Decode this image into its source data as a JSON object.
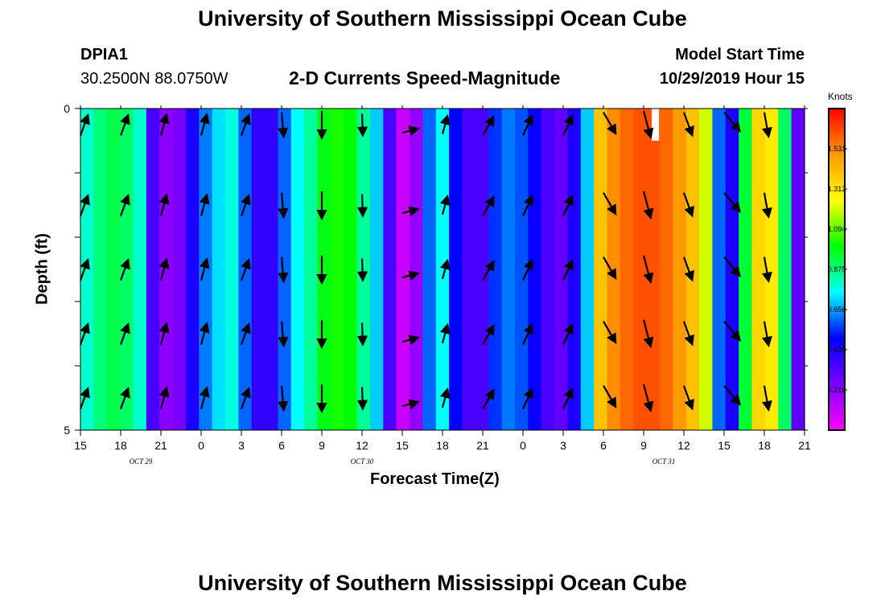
{
  "header": {
    "title": "University of Southern Mississippi Ocean Cube",
    "station_id": "DPIA1",
    "station_coords": "30.2500N 88.0750W",
    "subtitle": "2-D Currents Speed-Magnitude",
    "model_start_label": "Model Start Time",
    "model_start_value": "10/29/2019 Hour 15"
  },
  "footer": {
    "title": "University of Southern Mississippi Ocean Cube"
  },
  "colors": {
    "arrow": "#000000",
    "missing": "#ffffff",
    "palette": [
      "#ff00ff",
      "#7b00ff",
      "#0000ff",
      "#00ffff",
      "#00ff00",
      "#ffff00",
      "#ff9900",
      "#ff0000"
    ]
  },
  "chart_data": {
    "type": "heatmap",
    "title": "2-D Currents Speed-Magnitude",
    "xlabel": "Forecast Time(Z)",
    "ylabel": "Depth (ft)",
    "x_range_hours": [
      0,
      54
    ],
    "y_range": [
      0,
      5
    ],
    "x_ticks": [
      {
        "hour": 0,
        "label": "15"
      },
      {
        "hour": 3,
        "label": "18"
      },
      {
        "hour": 6,
        "label": "21"
      },
      {
        "hour": 9,
        "label": "0"
      },
      {
        "hour": 12,
        "label": "3"
      },
      {
        "hour": 15,
        "label": "6"
      },
      {
        "hour": 18,
        "label": "9"
      },
      {
        "hour": 21,
        "label": "12"
      },
      {
        "hour": 24,
        "label": "15"
      },
      {
        "hour": 27,
        "label": "18"
      },
      {
        "hour": 30,
        "label": "21"
      },
      {
        "hour": 33,
        "label": "0"
      },
      {
        "hour": 36,
        "label": "3"
      },
      {
        "hour": 39,
        "label": "6"
      },
      {
        "hour": 42,
        "label": "9"
      },
      {
        "hour": 45,
        "label": "12"
      },
      {
        "hour": 48,
        "label": "15"
      },
      {
        "hour": 51,
        "label": "18"
      },
      {
        "hour": 54,
        "label": "21"
      }
    ],
    "date_labels": [
      {
        "hour": 4.5,
        "label": "OCT 29"
      },
      {
        "hour": 21,
        "label": "OCT 30"
      },
      {
        "hour": 43.5,
        "label": "OCT 31"
      }
    ],
    "y_ticks": [
      {
        "value": 0,
        "label": "0"
      },
      {
        "value": 5,
        "label": "5"
      }
    ],
    "colorbar": {
      "unit": "Knots",
      "min": 0,
      "max": 1.75,
      "ticks": [
        {
          "value": 0.219,
          "label": "0.219"
        },
        {
          "value": 0.438,
          "label": "0.438"
        },
        {
          "value": 0.656,
          "label": "0.656"
        },
        {
          "value": 0.875,
          "label": "0.875"
        },
        {
          "value": 1.094,
          "label": "1.094"
        },
        {
          "value": 1.312,
          "label": "1.312"
        },
        {
          "value": 1.531,
          "label": "1.531"
        }
      ]
    },
    "speed_by_hour": [
      0.8,
      0.88,
      0.93,
      0.9,
      0.8,
      0.35,
      0.22,
      0.25,
      0.45,
      0.62,
      0.72,
      0.78,
      0.6,
      0.4,
      0.4,
      0.6,
      0.75,
      0.85,
      0.98,
      1.02,
      1.0,
      0.85,
      0.7,
      0.35,
      0.1,
      0.2,
      0.6,
      0.75,
      0.5,
      0.35,
      0.35,
      0.55,
      0.62,
      0.58,
      0.48,
      0.35,
      0.3,
      0.45,
      0.7,
      1.4,
      1.52,
      1.58,
      1.62,
      1.62,
      1.58,
      1.5,
      1.4,
      1.2,
      0.6,
      0.45,
      0.95,
      1.35,
      1.3,
      0.9,
      0.3
    ],
    "missing_cells": [
      {
        "hour": 43,
        "depth_from": 0,
        "depth_to": 0.5
      }
    ],
    "depth_levels": [
      0.5,
      1.5,
      2.5,
      3.5,
      4.5
    ],
    "surface_level": 0.25,
    "vectors": [
      {
        "hour": 0,
        "dir": 20,
        "mag": 0.8
      },
      {
        "hour": 3,
        "dir": 20,
        "mag": 0.8
      },
      {
        "hour": 6,
        "dir": 15,
        "mag": 0.8
      },
      {
        "hour": 9,
        "dir": 15,
        "mag": 0.8
      },
      {
        "hour": 12,
        "dir": 20,
        "mag": 0.8
      },
      {
        "hour": 15,
        "dir": 175,
        "mag": 0.9
      },
      {
        "hour": 18,
        "dir": 180,
        "mag": 1.0
      },
      {
        "hour": 21,
        "dir": 178,
        "mag": 0.8
      },
      {
        "hour": 24,
        "dir": 75,
        "mag": 0.6
      },
      {
        "hour": 27,
        "dir": 15,
        "mag": 0.7
      },
      {
        "hour": 30,
        "dir": 30,
        "mag": 0.8
      },
      {
        "hour": 33,
        "dir": 25,
        "mag": 0.8
      },
      {
        "hour": 36,
        "dir": 25,
        "mag": 0.8
      },
      {
        "hour": 39,
        "dir": 150,
        "mag": 0.9
      },
      {
        "hour": 42,
        "dir": 165,
        "mag": 1.0
      },
      {
        "hour": 45,
        "dir": 160,
        "mag": 0.9
      },
      {
        "hour": 48,
        "dir": 140,
        "mag": 0.9
      },
      {
        "hour": 51,
        "dir": 170,
        "mag": 0.9
      }
    ]
  }
}
